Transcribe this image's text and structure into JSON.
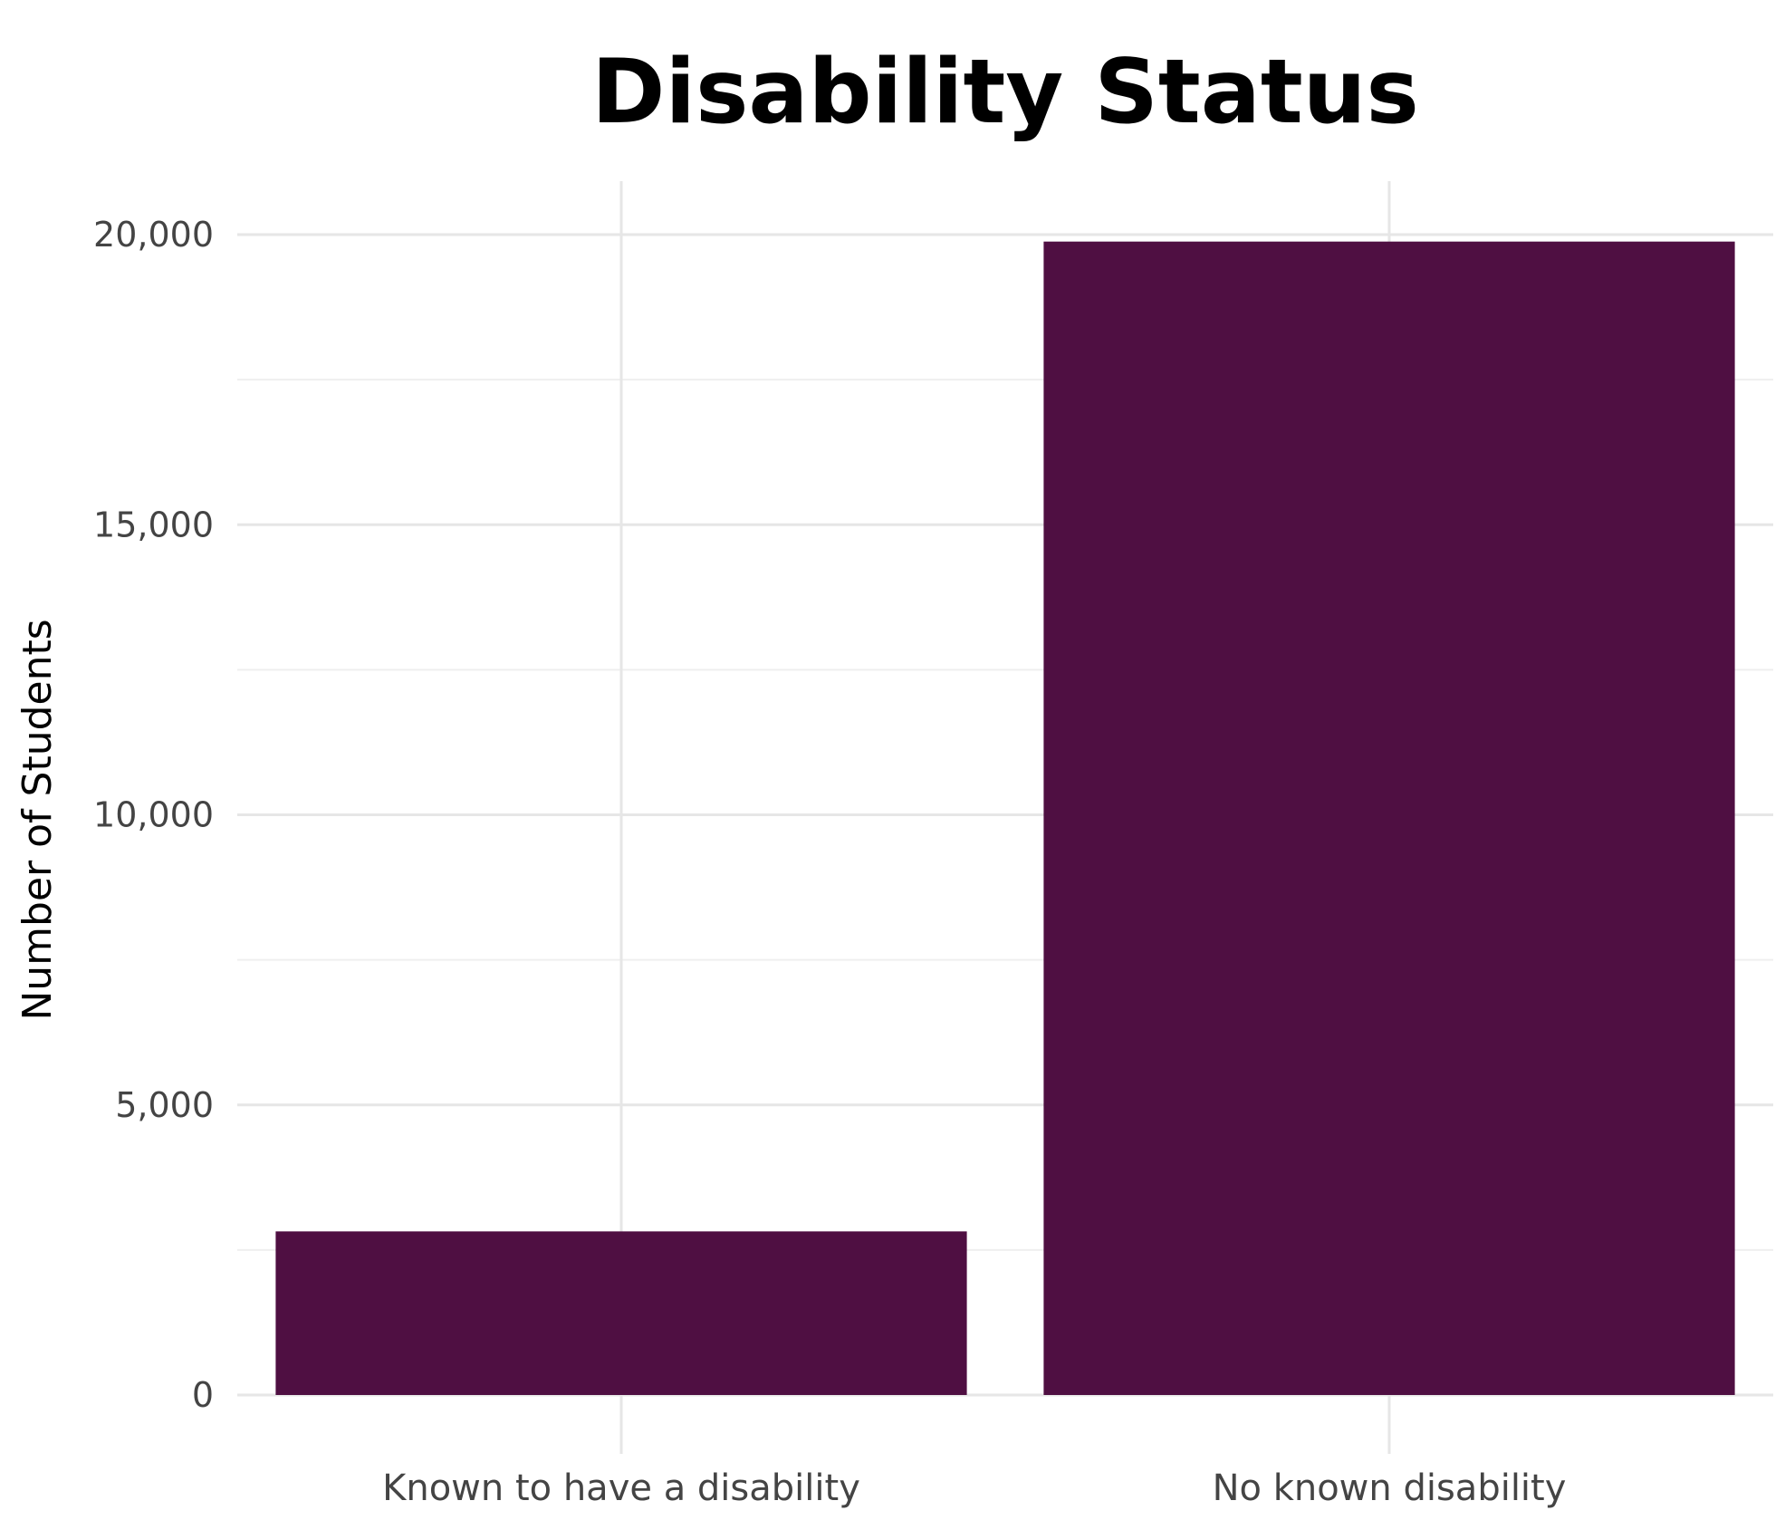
{
  "chart_data": {
    "type": "bar",
    "title": "Disability Status",
    "xlabel": "",
    "ylabel": "Number of Students",
    "categories": [
      "Known to have a disability",
      "No known disability"
    ],
    "values": [
      2820,
      19880
    ],
    "ylim": [
      0,
      20000
    ],
    "yticks": [
      0,
      5000,
      10000,
      15000,
      20000
    ],
    "ytick_labels": [
      "0",
      "5,000",
      "10,000",
      "15,000",
      "20,000"
    ],
    "grid": true,
    "legend": "none",
    "bar_color": "#4f0f42"
  }
}
